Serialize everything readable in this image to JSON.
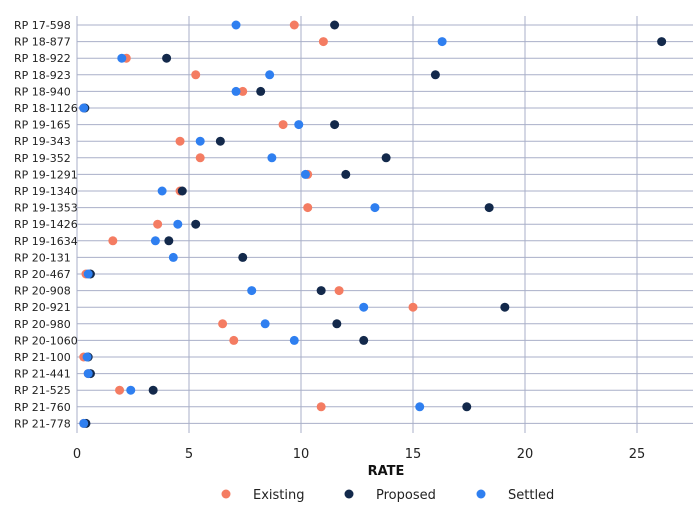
{
  "chart_data": {
    "type": "scatter",
    "orientation": "horizontal-dot-plot",
    "xlabel": "RATE",
    "xlim": [
      0,
      27.5
    ],
    "xticks": [
      0,
      5,
      10,
      15,
      20,
      25
    ],
    "grid": "vertical-major-and-horizontal-rows",
    "legend_position": "bottom-center",
    "categories": [
      "RP 17-598",
      "RP 18-877",
      "RP 18-922",
      "RP 18-923",
      "RP 18-940",
      "RP 18-1126",
      "RP 19-165",
      "RP 19-343",
      "RP 19-352",
      "RP 19-1291",
      "RP 19-1340",
      "RP 19-1353",
      "RP 19-1426",
      "RP 19-1634",
      "RP 20-131",
      "RP 20-467",
      "RP 20-908",
      "RP 20-921",
      "RP 20-980",
      "RP 20-1060",
      "RP 21-100",
      "RP 21-441",
      "RP 21-525",
      "RP 21-760",
      "RP 21-778"
    ],
    "series": [
      {
        "name": "Existing",
        "color": "#f47c62",
        "values": [
          9.7,
          11.0,
          2.2,
          5.3,
          7.4,
          0.3,
          9.2,
          4.6,
          5.5,
          10.3,
          4.6,
          10.3,
          3.6,
          1.6,
          null,
          0.4,
          11.7,
          15.0,
          6.5,
          7.0,
          0.3,
          0.5,
          1.9,
          10.9,
          0.3
        ]
      },
      {
        "name": "Proposed",
        "color": "#13294b",
        "values": [
          11.5,
          26.1,
          4.0,
          16.0,
          8.2,
          0.35,
          11.5,
          6.4,
          13.8,
          12.0,
          4.7,
          18.4,
          5.3,
          4.1,
          7.4,
          0.6,
          10.9,
          19.1,
          11.6,
          12.8,
          0.5,
          0.6,
          3.4,
          17.4,
          0.4
        ]
      },
      {
        "name": "Settled",
        "color": "#2f7ff0",
        "values": [
          7.1,
          16.3,
          2.0,
          8.6,
          7.1,
          0.3,
          9.9,
          5.5,
          8.7,
          10.2,
          3.8,
          13.3,
          4.5,
          3.5,
          4.3,
          0.5,
          7.8,
          12.8,
          8.4,
          9.7,
          0.45,
          0.5,
          2.4,
          15.3,
          0.3
        ]
      }
    ]
  }
}
